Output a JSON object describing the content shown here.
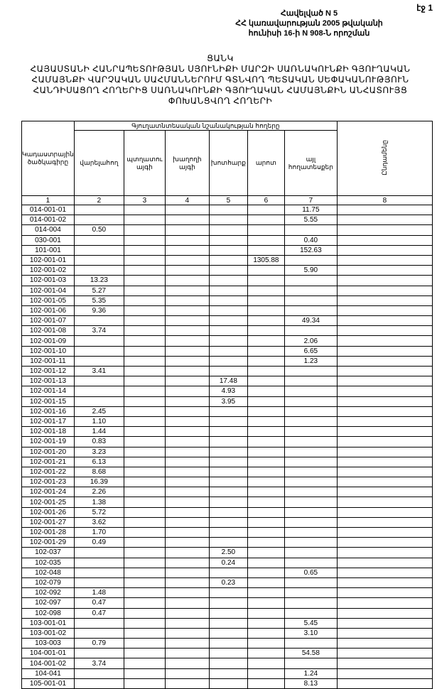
{
  "page_number": "էջ 1",
  "annex": [
    "Հավելված N 5",
    "ՀՀ կառավարության 2005 թվականի",
    "հունիսի 16-ի N 908-Ն որոշման"
  ],
  "title": [
    "ՑԱՆԿ",
    "ՀԱՅԱՍՏԱՆԻ ՀԱՆՐԱՊԵՏՈՒԹՅԱՆ ՍՅՈՒՆԻՔԻ ՄԱՐԶԻ ՍԱՌՆԱԿՈՒՆՔԻ ԳՅՈՒՂԱԿԱՆ",
    "ՀԱՄԱՅՆՔԻ ՎԱՐՉԱԿԱՆ ՍԱՀՄԱՆՆԵՐՈՒՄ ԳՏՆՎՈՂ ՊԵՏԱԿԱՆ ՍԵՓԱԿԱՆՈՒԹՅՈՒՆ",
    "ՀԱՆԴԻՍԱՑՈՂ ՀՈՂԵՐԻՑ ՍԱՌՆԱԿՈՒՆՔԻ ԳՅՈՒՂԱԿԱՆ ՀԱՄԱՅՆՔԻՆ ԱՆՀԱՏՈՒՅՑ",
    "ՓՈԽԱՆՑՎՈՂ ՀՈՂԵՐԻ"
  ],
  "table": {
    "group_header": "Գյուղատնտեսական նշանակության հողերը",
    "headers": [
      "Կադաստրային ծածկագիրը",
      "վարելահող",
      "պտղատու այգի",
      "խաղողի այգի",
      "խոտհարք",
      "արոտ",
      "այլ հողատեսքեր",
      "Ընդամենը"
    ],
    "numbers": [
      "1",
      "2",
      "3",
      "4",
      "5",
      "6",
      "7",
      "8"
    ],
    "rows": [
      [
        "014-001-01",
        "",
        "",
        "",
        "",
        "",
        "11.75",
        ""
      ],
      [
        "014-001-02",
        "",
        "",
        "",
        "",
        "",
        "5.55",
        ""
      ],
      [
        "014-004",
        "0.50",
        "",
        "",
        "",
        "",
        "",
        ""
      ],
      [
        "030-001",
        "",
        "",
        "",
        "",
        "",
        "0.40",
        ""
      ],
      [
        "101-001",
        "",
        "",
        "",
        "",
        "",
        "152.63",
        ""
      ],
      [
        "102-001-01",
        "",
        "",
        "",
        "",
        "1305.88",
        "",
        ""
      ],
      [
        "102-001-02",
        "",
        "",
        "",
        "",
        "",
        "5.90",
        ""
      ],
      [
        "102-001-03",
        "13.23",
        "",
        "",
        "",
        "",
        "",
        ""
      ],
      [
        "102-001-04",
        "5.27",
        "",
        "",
        "",
        "",
        "",
        ""
      ],
      [
        "102-001-05",
        "5.35",
        "",
        "",
        "",
        "",
        "",
        ""
      ],
      [
        "102-001-06",
        "9.36",
        "",
        "",
        "",
        "",
        "",
        ""
      ],
      [
        "102-001-07",
        "",
        "",
        "",
        "",
        "",
        "49.34",
        ""
      ],
      [
        "102-001-08",
        "3.74",
        "",
        "",
        "",
        "",
        "",
        ""
      ],
      [
        "102-001-09",
        "",
        "",
        "",
        "",
        "",
        "2.06",
        ""
      ],
      [
        "102-001-10",
        "",
        "",
        "",
        "",
        "",
        "6.65",
        ""
      ],
      [
        "102-001-11",
        "",
        "",
        "",
        "",
        "",
        "1.23",
        ""
      ],
      [
        "102-001-12",
        "3.41",
        "",
        "",
        "",
        "",
        "",
        ""
      ],
      [
        "102-001-13",
        "",
        "",
        "",
        "17.48",
        "",
        "",
        ""
      ],
      [
        "102-001-14",
        "",
        "",
        "",
        "4.93",
        "",
        "",
        ""
      ],
      [
        "102-001-15",
        "",
        "",
        "",
        "3.95",
        "",
        "",
        ""
      ],
      [
        "102-001-16",
        "2.45",
        "",
        "",
        "",
        "",
        "",
        ""
      ],
      [
        "102-001-17",
        "1.10",
        "",
        "",
        "",
        "",
        "",
        ""
      ],
      [
        "102-001-18",
        "1.44",
        "",
        "",
        "",
        "",
        "",
        ""
      ],
      [
        "102-001-19",
        "0.83",
        "",
        "",
        "",
        "",
        "",
        ""
      ],
      [
        "102-001-20",
        "3.23",
        "",
        "",
        "",
        "",
        "",
        ""
      ],
      [
        "102-001-21",
        "6.13",
        "",
        "",
        "",
        "",
        "",
        ""
      ],
      [
        "102-001-22",
        "8.68",
        "",
        "",
        "",
        "",
        "",
        ""
      ],
      [
        "102-001-23",
        "16.39",
        "",
        "",
        "",
        "",
        "",
        ""
      ],
      [
        "102-001-24",
        "2.26",
        "",
        "",
        "",
        "",
        "",
        ""
      ],
      [
        "102-001-25",
        "1.38",
        "",
        "",
        "",
        "",
        "",
        ""
      ],
      [
        "102-001-26",
        "5.72",
        "",
        "",
        "",
        "",
        "",
        ""
      ],
      [
        "102-001-27",
        "3.62",
        "",
        "",
        "",
        "",
        "",
        ""
      ],
      [
        "102-001-28",
        "1.70",
        "",
        "",
        "",
        "",
        "",
        ""
      ],
      [
        "102-001-29",
        "0.49",
        "",
        "",
        "",
        "",
        "",
        ""
      ],
      [
        "102-037",
        "",
        "",
        "",
        "2.50",
        "",
        "",
        ""
      ],
      [
        "102-035",
        "",
        "",
        "",
        "0.24",
        "",
        "",
        ""
      ],
      [
        "102-048",
        "",
        "",
        "",
        "",
        "",
        "0.65",
        ""
      ],
      [
        "102-079",
        "",
        "",
        "",
        "0.23",
        "",
        "",
        ""
      ],
      [
        "102-092",
        "1.48",
        "",
        "",
        "",
        "",
        "",
        ""
      ],
      [
        "102-097",
        "0.47",
        "",
        "",
        "",
        "",
        "",
        ""
      ],
      [
        "102-098",
        "0.47",
        "",
        "",
        "",
        "",
        "",
        ""
      ],
      [
        "103-001-01",
        "",
        "",
        "",
        "",
        "",
        "5.45",
        ""
      ],
      [
        "103-001-02",
        "",
        "",
        "",
        "",
        "",
        "3.10",
        ""
      ],
      [
        "103-003",
        "0.79",
        "",
        "",
        "",
        "",
        "",
        ""
      ],
      [
        "104-001-01",
        "",
        "",
        "",
        "",
        "",
        "54.58",
        ""
      ],
      [
        "104-001-02",
        "3.74",
        "",
        "",
        "",
        "",
        "",
        ""
      ],
      [
        "104-041",
        "",
        "",
        "",
        "",
        "",
        "1.24",
        ""
      ],
      [
        "105-001-01",
        "",
        "",
        "",
        "",
        "",
        "8.13",
        ""
      ]
    ]
  }
}
